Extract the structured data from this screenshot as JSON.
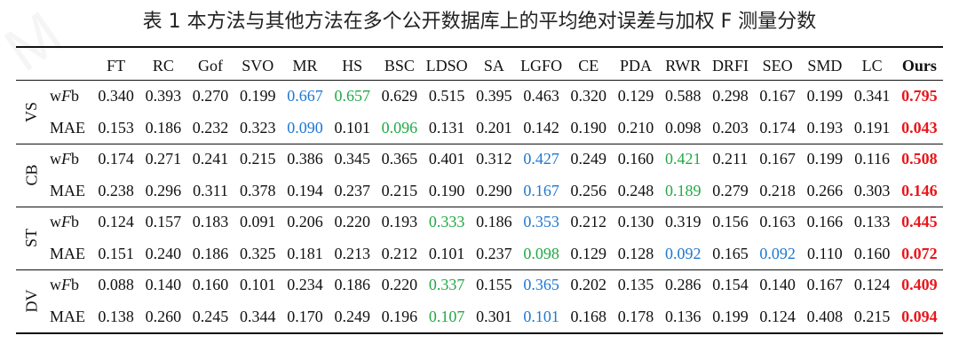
{
  "caption": "表 1  本方法与其他方法在多个公开数据库上的平均绝对误差与加权 F 测量分数",
  "columns": [
    "FT",
    "RC",
    "Gof",
    "SVO",
    "MR",
    "HS",
    "BSC",
    "LDSO",
    "SA",
    "LGFO",
    "CE",
    "PDA",
    "RWR",
    "DRFI",
    "SEO",
    "SMD",
    "LC",
    "Ours"
  ],
  "colors": {
    "best": "#e8161b",
    "second": "#1f77d0",
    "third": "#22a845"
  },
  "groups": [
    {
      "name": "VS",
      "rows": [
        {
          "metric": "wFb",
          "values": [
            "0.340",
            "0.393",
            "0.270",
            "0.199",
            "0.667",
            "0.657",
            "0.629",
            "0.515",
            "0.395",
            "0.463",
            "0.320",
            "0.129",
            "0.588",
            "0.298",
            "0.167",
            "0.199",
            "0.341",
            "0.795"
          ],
          "highlight": {
            "4": "blue",
            "5": "green",
            "17": "red"
          }
        },
        {
          "metric": "MAE",
          "values": [
            "0.153",
            "0.186",
            "0.232",
            "0.323",
            "0.090",
            "0.101",
            "0.096",
            "0.131",
            "0.201",
            "0.142",
            "0.190",
            "0.210",
            "0.098",
            "0.203",
            "0.174",
            "0.193",
            "0.191",
            "0.043"
          ],
          "highlight": {
            "4": "blue",
            "6": "green",
            "17": "red"
          }
        }
      ]
    },
    {
      "name": "CB",
      "rows": [
        {
          "metric": "wFb",
          "values": [
            "0.174",
            "0.271",
            "0.241",
            "0.215",
            "0.386",
            "0.345",
            "0.365",
            "0.401",
            "0.312",
            "0.427",
            "0.249",
            "0.160",
            "0.421",
            "0.211",
            "0.167",
            "0.199",
            "0.116",
            "0.508"
          ],
          "highlight": {
            "9": "blue",
            "12": "green",
            "17": "red"
          }
        },
        {
          "metric": "MAE",
          "values": [
            "0.238",
            "0.296",
            "0.311",
            "0.378",
            "0.194",
            "0.237",
            "0.215",
            "0.190",
            "0.290",
            "0.167",
            "0.256",
            "0.248",
            "0.189",
            "0.279",
            "0.218",
            "0.266",
            "0.303",
            "0.146"
          ],
          "highlight": {
            "9": "blue",
            "12": "green",
            "17": "red"
          }
        }
      ]
    },
    {
      "name": "ST",
      "rows": [
        {
          "metric": "wFb",
          "values": [
            "0.124",
            "0.157",
            "0.183",
            "0.091",
            "0.206",
            "0.220",
            "0.193",
            "0.333",
            "0.186",
            "0.353",
            "0.212",
            "0.130",
            "0.319",
            "0.156",
            "0.163",
            "0.166",
            "0.133",
            "0.445"
          ],
          "highlight": {
            "7": "green",
            "9": "blue",
            "17": "red"
          }
        },
        {
          "metric": "MAE",
          "values": [
            "0.151",
            "0.240",
            "0.186",
            "0.325",
            "0.181",
            "0.213",
            "0.212",
            "0.101",
            "0.237",
            "0.098",
            "0.129",
            "0.128",
            "0.092",
            "0.165",
            "0.092",
            "0.110",
            "0.160",
            "0.072"
          ],
          "highlight": {
            "9": "green",
            "12": "blue",
            "14": "blue",
            "17": "red"
          }
        }
      ]
    },
    {
      "name": "DV",
      "rows": [
        {
          "metric": "wFb",
          "values": [
            "0.088",
            "0.140",
            "0.160",
            "0.101",
            "0.234",
            "0.186",
            "0.220",
            "0.337",
            "0.155",
            "0.365",
            "0.202",
            "0.135",
            "0.286",
            "0.154",
            "0.140",
            "0.167",
            "0.124",
            "0.409"
          ],
          "highlight": {
            "7": "green",
            "9": "blue",
            "17": "red"
          }
        },
        {
          "metric": "MAE",
          "values": [
            "0.138",
            "0.260",
            "0.245",
            "0.344",
            "0.170",
            "0.249",
            "0.196",
            "0.107",
            "0.301",
            "0.101",
            "0.168",
            "0.178",
            "0.136",
            "0.199",
            "0.124",
            "0.408",
            "0.215",
            "0.094"
          ],
          "highlight": {
            "7": "green",
            "9": "blue",
            "17": "red"
          }
        }
      ]
    }
  ]
}
